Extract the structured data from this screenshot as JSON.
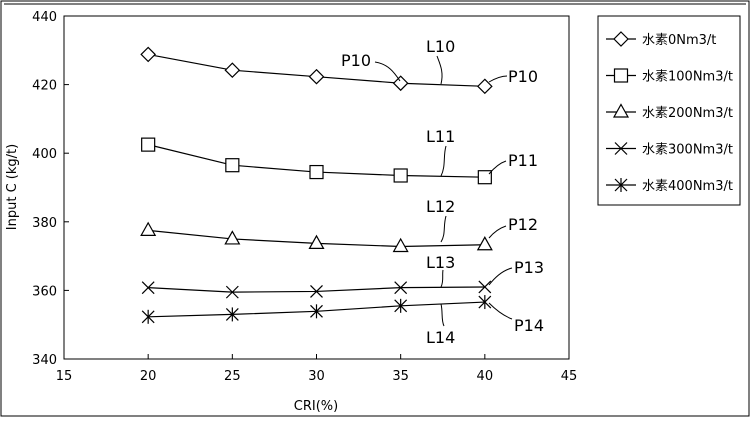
{
  "chart_data": {
    "type": "line",
    "xlabel": "CRI(%)",
    "ylabel": "Input C (kg/t)",
    "xlim": [
      15,
      45
    ],
    "ylim": [
      340,
      440
    ],
    "xticks": [
      15,
      20,
      25,
      30,
      35,
      40,
      45
    ],
    "yticks": [
      340,
      360,
      380,
      400,
      420,
      440
    ],
    "x": [
      20,
      25,
      30,
      35,
      40
    ],
    "grid": false,
    "legend_position": "right",
    "series": [
      {
        "name": "水素0Nm3/t",
        "marker": "diamond",
        "values": [
          428.8,
          424.2,
          422.3,
          420.4,
          419.5
        ]
      },
      {
        "name": "水素100Nm3/t",
        "marker": "square",
        "values": [
          402.5,
          396.5,
          394.5,
          393.5,
          393.0
        ]
      },
      {
        "name": "水素200Nm3/t",
        "marker": "triangle",
        "values": [
          377.5,
          375.0,
          373.7,
          372.8,
          373.3
        ]
      },
      {
        "name": "水素300Nm3/t",
        "marker": "x",
        "values": [
          360.8,
          359.5,
          359.7,
          360.8,
          361.0
        ]
      },
      {
        "name": "水素400Nm3/t",
        "marker": "asterisk",
        "values": [
          352.3,
          353.0,
          353.9,
          355.5,
          356.6
        ]
      }
    ],
    "annotations": [
      {
        "text": "P10",
        "x": 35,
        "y": 420.4
      },
      {
        "text": "L10",
        "x": 37.5,
        "y": 420.0
      },
      {
        "text": "P10",
        "x": 40,
        "y": 419.5
      },
      {
        "text": "L11",
        "x": 37.5,
        "y": 393.3
      },
      {
        "text": "P11",
        "x": 40,
        "y": 393.0
      },
      {
        "text": "L12",
        "x": 37.5,
        "y": 373.0
      },
      {
        "text": "P12",
        "x": 40,
        "y": 373.3
      },
      {
        "text": "L13",
        "x": 37.5,
        "y": 360.9
      },
      {
        "text": "P13",
        "x": 40,
        "y": 361.0
      },
      {
        "text": "L14",
        "x": 37.5,
        "y": 356.0
      },
      {
        "text": "P14",
        "x": 40,
        "y": 356.6
      }
    ]
  }
}
